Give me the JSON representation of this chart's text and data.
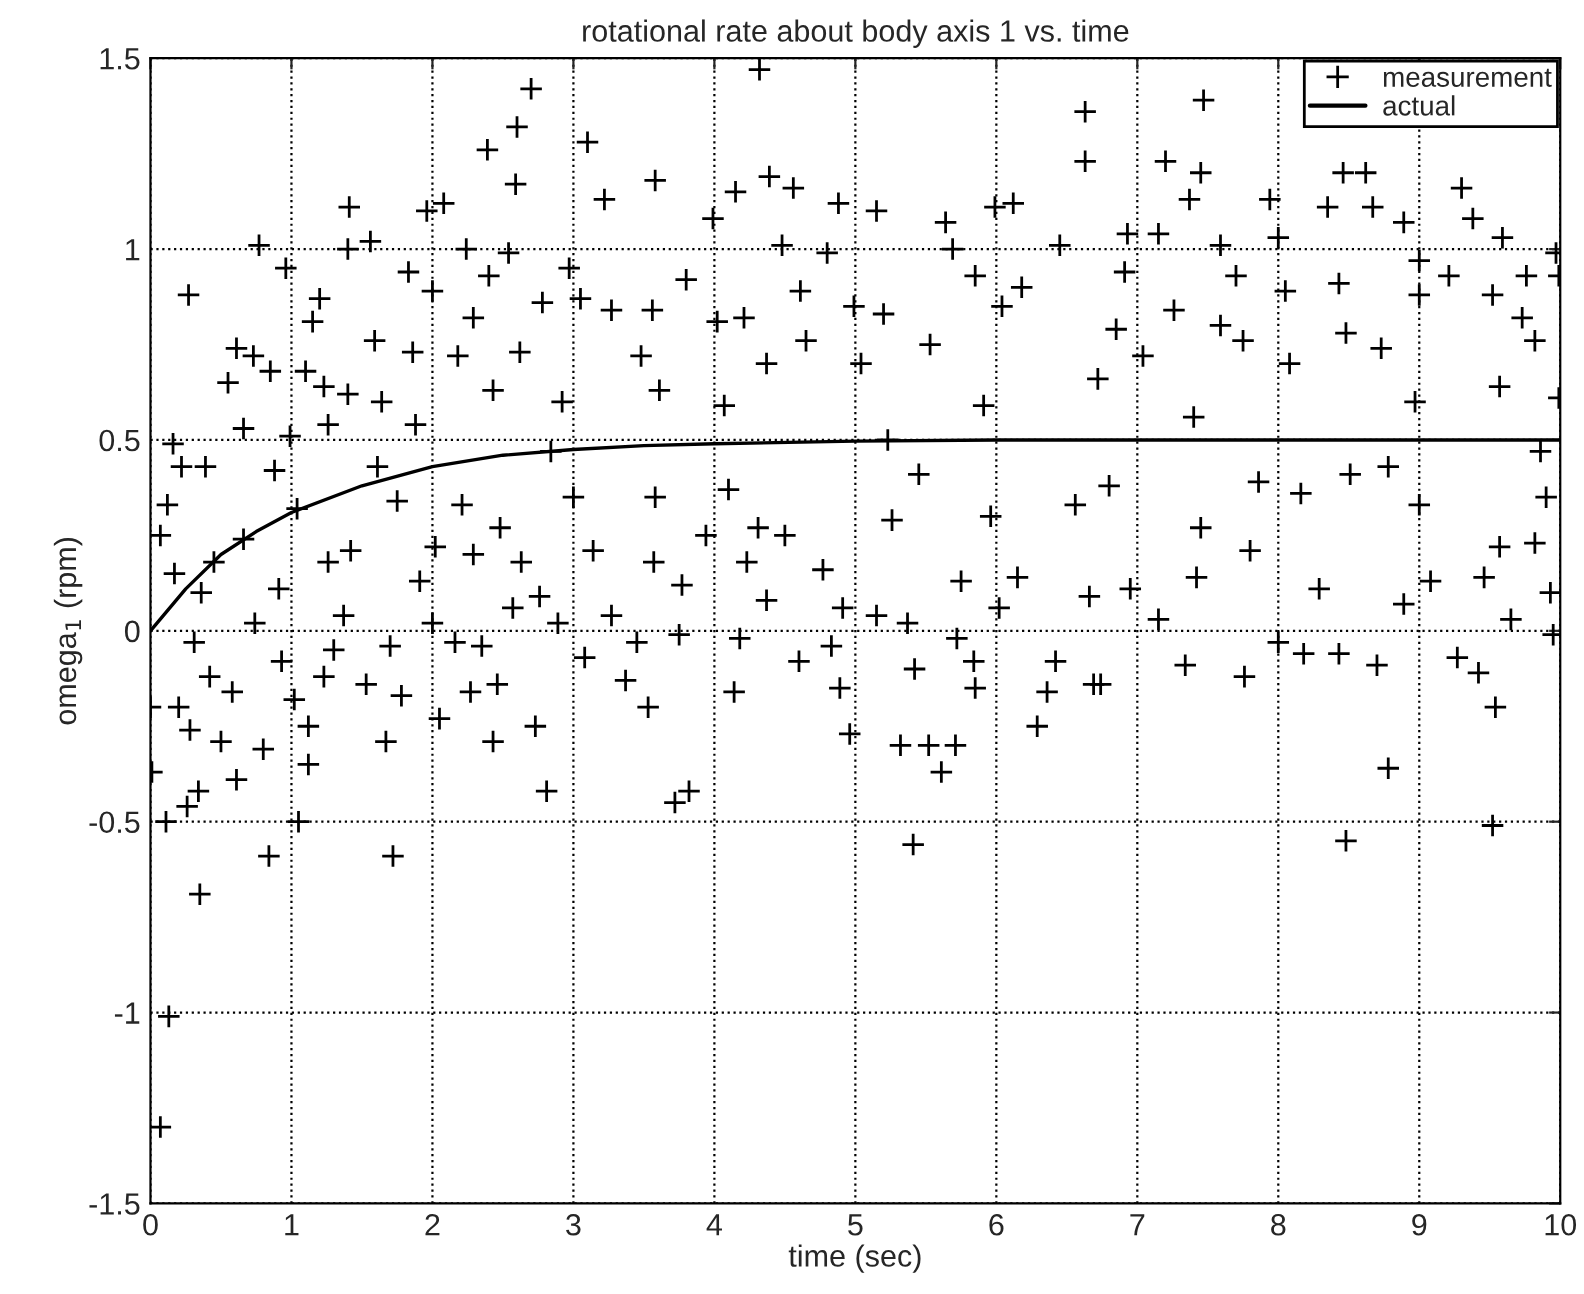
{
  "chart_data": {
    "type": "scatter",
    "title": "rotational rate about body axis 1 vs. time",
    "xlabel": "time (sec)",
    "ylabel": "omega$_{1}$ (rpm)",
    "xlim": [
      0,
      10
    ],
    "ylim": [
      -1.5,
      1.5
    ],
    "xticks": [
      0,
      1,
      2,
      3,
      4,
      5,
      6,
      7,
      8,
      9,
      10
    ],
    "yticks": [
      -1.5,
      -1,
      -0.5,
      0,
      0.5,
      1,
      1.5
    ],
    "grid": true,
    "legend": "top right",
    "series": [
      {
        "name": "measurement",
        "marker": "cross",
        "color": "#000000",
        "x": [
          0.07,
          0.13,
          0.01,
          0.11,
          0.0,
          0.2,
          0.16,
          0.27,
          0.22,
          0.12,
          0.07,
          0.17,
          0.35,
          0.34,
          0.26,
          0.28,
          0.31,
          0.36,
          0.39,
          0.45,
          0.42,
          0.5,
          0.58,
          0.61,
          0.55,
          0.61,
          0.73,
          0.66,
          0.66,
          0.74,
          0.77,
          0.8,
          0.84,
          0.85,
          0.88,
          0.91,
          0.93,
          0.96,
          0.99,
          1.05,
          1.02,
          1.04,
          1.1,
          1.12,
          1.12,
          1.15,
          1.2,
          1.23,
          1.26,
          1.26,
          1.23,
          1.3,
          1.4,
          1.41,
          1.4,
          1.42,
          1.37,
          1.53,
          1.56,
          1.59,
          1.64,
          1.61,
          1.67,
          1.72,
          1.7,
          1.75,
          1.78,
          1.83,
          1.86,
          1.88,
          1.91,
          1.96,
          2.0,
          2.02,
          2.0,
          2.05,
          2.08,
          2.16,
          2.18,
          2.24,
          2.21,
          2.29,
          2.29,
          2.27,
          2.35,
          2.39,
          2.4,
          2.43,
          2.43,
          2.46,
          2.48,
          2.54,
          2.57,
          2.6,
          2.59,
          2.62,
          2.63,
          2.7,
          2.73,
          2.76,
          2.78,
          2.81,
          2.84,
          2.89,
          2.92,
          2.97,
          3.0,
          3.05,
          3.08,
          3.1,
          3.14,
          3.22,
          3.27,
          3.27,
          3.37,
          3.53,
          3.45,
          3.58,
          3.56,
          3.48,
          3.61,
          3.58,
          3.57,
          3.72,
          3.82,
          3.77,
          3.75,
          3.8,
          3.94,
          3.99,
          4.02,
          4.07,
          4.1,
          4.14,
          4.15,
          4.18,
          4.21,
          4.23,
          4.32,
          4.31,
          4.37,
          4.39,
          4.37,
          4.48,
          4.5,
          4.56,
          4.6,
          4.61,
          4.65,
          4.77,
          4.8,
          4.83,
          4.88,
          4.91,
          4.89,
          4.96,
          4.99,
          5.04,
          5.15,
          5.15,
          5.2,
          5.23,
          5.26,
          5.32,
          5.37,
          5.42,
          5.41,
          5.45,
          5.52,
          5.61,
          5.71,
          5.53,
          5.64,
          5.69,
          5.72,
          5.75,
          5.84,
          5.85,
          5.85,
          5.91,
          5.96,
          5.99,
          6.12,
          6.02,
          6.04,
          6.18,
          6.15,
          6.29,
          6.36,
          6.42,
          6.45,
          6.63,
          6.63,
          6.56,
          6.66,
          6.69,
          6.74,
          6.93,
          6.91,
          6.85,
          6.72,
          6.8,
          6.95,
          7.04,
          7.15,
          7.2,
          7.15,
          7.26,
          7.34,
          7.37,
          7.4,
          7.42,
          7.45,
          7.45,
          7.47,
          7.59,
          7.59,
          7.7,
          7.75,
          7.76,
          7.8,
          7.86,
          7.94,
          8.0,
          8.0,
          8.05,
          8.08,
          8.18,
          8.16,
          8.29,
          8.35,
          8.43,
          8.43,
          8.48,
          8.48,
          8.51,
          8.46,
          8.62,
          8.67,
          8.7,
          8.73,
          8.78,
          8.78,
          8.89,
          8.89,
          9.0,
          9.0,
          9.0,
          8.97,
          9.08,
          9.21,
          9.27,
          9.3,
          9.38,
          9.42,
          9.46,
          9.54,
          9.52,
          9.59,
          9.52,
          9.57,
          9.57,
          9.65,
          9.73,
          9.76,
          9.82,
          9.86,
          9.82,
          9.9,
          9.93,
          9.95,
          9.97,
          9.99,
          9.99
        ],
        "values": [
          -1.3,
          -1.01,
          -0.37,
          -0.5,
          -0.2,
          -0.2,
          0.49,
          0.88,
          0.43,
          0.33,
          0.25,
          0.15,
          -0.69,
          -0.42,
          -0.46,
          -0.26,
          -0.03,
          0.1,
          0.43,
          0.18,
          -0.12,
          -0.29,
          -0.16,
          -0.39,
          0.65,
          0.74,
          0.72,
          0.53,
          0.24,
          0.02,
          1.01,
          -0.31,
          -0.59,
          0.68,
          0.42,
          0.11,
          -0.08,
          0.95,
          0.51,
          -0.5,
          -0.18,
          0.32,
          0.68,
          -0.25,
          -0.35,
          0.81,
          0.87,
          0.64,
          0.54,
          0.18,
          -0.12,
          -0.05,
          0.62,
          1.11,
          1.0,
          0.21,
          0.04,
          -0.14,
          1.02,
          0.76,
          0.6,
          0.43,
          -0.29,
          -0.59,
          -0.04,
          0.34,
          -0.17,
          0.94,
          0.73,
          0.54,
          0.13,
          1.1,
          0.89,
          0.22,
          0.02,
          -0.23,
          1.12,
          -0.03,
          0.72,
          1.0,
          0.33,
          0.82,
          0.2,
          -0.16,
          -0.04,
          1.26,
          0.93,
          0.63,
          -0.29,
          -0.14,
          0.27,
          0.99,
          0.06,
          1.32,
          1.17,
          0.73,
          0.18,
          1.42,
          -0.25,
          0.09,
          0.86,
          -0.42,
          0.47,
          0.02,
          0.6,
          0.95,
          0.35,
          0.87,
          -0.07,
          1.28,
          0.21,
          1.13,
          0.84,
          0.04,
          -0.13,
          -0.2,
          -0.03,
          1.18,
          0.84,
          0.72,
          0.63,
          0.35,
          0.18,
          -0.45,
          -0.42,
          0.12,
          -0.01,
          0.92,
          0.25,
          1.08,
          0.81,
          0.59,
          0.37,
          -0.16,
          1.15,
          -0.02,
          0.82,
          0.18,
          1.47,
          0.27,
          0.7,
          1.19,
          0.08,
          1.01,
          0.25,
          1.16,
          -0.08,
          0.89,
          0.76,
          0.16,
          0.99,
          -0.04,
          1.12,
          0.06,
          -0.15,
          -0.27,
          0.85,
          0.7,
          1.1,
          0.04,
          0.83,
          0.5,
          0.29,
          -0.3,
          0.02,
          -0.1,
          -0.56,
          0.41,
          -0.3,
          -0.37,
          -0.3,
          0.75,
          1.07,
          1.0,
          -0.02,
          0.13,
          -0.08,
          -0.15,
          0.93,
          0.59,
          0.3,
          1.11,
          1.12,
          0.06,
          0.85,
          0.9,
          0.14,
          -0.25,
          -0.16,
          -0.08,
          1.01,
          1.36,
          1.23,
          0.33,
          0.09,
          -0.14,
          -0.14,
          1.04,
          0.94,
          0.79,
          0.66,
          0.38,
          0.11,
          0.72,
          1.04,
          1.23,
          0.03,
          0.84,
          -0.09,
          1.13,
          0.56,
          0.14,
          1.2,
          0.27,
          1.39,
          1.01,
          0.8,
          0.93,
          0.76,
          -0.12,
          0.21,
          0.39,
          1.13,
          1.03,
          -0.03,
          0.89,
          0.7,
          -0.06,
          0.36,
          0.11,
          1.11,
          -0.06,
          0.91,
          -0.55,
          0.78,
          0.41,
          1.2,
          1.2,
          1.11,
          -0.09,
          0.74,
          -0.36,
          0.43,
          0.07,
          1.07,
          0.97,
          0.88,
          0.33,
          0.6,
          0.13,
          0.93,
          -0.07,
          1.16,
          1.08,
          -0.11,
          0.14,
          -0.2,
          -0.51,
          1.03,
          0.88,
          0.64,
          0.22,
          0.03,
          0.82,
          0.93,
          0.76,
          0.47,
          0.23,
          0.35,
          0.1,
          -0.01,
          0.99,
          0.93,
          0.61
        ]
      },
      {
        "name": "actual",
        "type": "line",
        "marker": "none",
        "line_style": "solid",
        "color": "#000000",
        "x": [
          0,
          0.25,
          0.5,
          0.75,
          1,
          1.5,
          2,
          2.5,
          3,
          3.5,
          4,
          5,
          6,
          8,
          10
        ],
        "values": [
          0,
          0.11,
          0.2,
          0.26,
          0.31,
          0.38,
          0.43,
          0.46,
          0.475,
          0.485,
          0.49,
          0.497,
          0.5,
          0.5,
          0.5
        ]
      }
    ]
  }
}
